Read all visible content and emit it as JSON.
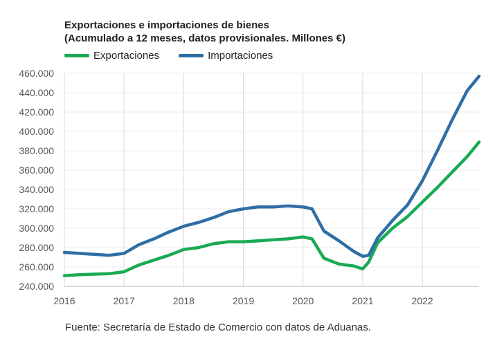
{
  "chart_data": {
    "type": "line",
    "title": "Exportaciones e importaciones de bienes",
    "subtitle": "(Acumulado a 12 meses, datos provisionales. Millones €)",
    "x_ticks": [
      "2016",
      "2017",
      "2018",
      "2019",
      "2020",
      "2021",
      "2022"
    ],
    "y_ticks": [
      "240.000",
      "260.000",
      "280.000",
      "300.000",
      "320.000",
      "340.000",
      "360.000",
      "380.000",
      "400.000",
      "420.000",
      "440.000",
      "460.000"
    ],
    "ylim": [
      240000,
      460000
    ],
    "xlim": [
      2016.0,
      2022.95
    ],
    "legend_position": "top-left",
    "series": [
      {
        "name": "Exportaciones",
        "color": "#1aaa55",
        "x": [
          2016.0,
          2016.25,
          2016.5,
          2016.75,
          2017.0,
          2017.25,
          2017.5,
          2017.75,
          2018.0,
          2018.25,
          2018.5,
          2018.75,
          2019.0,
          2019.25,
          2019.5,
          2019.75,
          2020.0,
          2020.15,
          2020.35,
          2020.6,
          2020.85,
          2021.0,
          2021.1,
          2021.25,
          2021.5,
          2021.75,
          2022.0,
          2022.25,
          2022.5,
          2022.75,
          2022.95
        ],
        "values": [
          251000,
          252000,
          252500,
          253000,
          255000,
          262000,
          267000,
          272000,
          278000,
          280000,
          284000,
          286000,
          286000,
          287000,
          288000,
          289000,
          291000,
          289000,
          269000,
          263000,
          261000,
          258000,
          265000,
          285000,
          300000,
          312000,
          327000,
          342000,
          358000,
          374000,
          389000
        ]
      },
      {
        "name": "Importaciones",
        "color": "#2f6ea5",
        "x": [
          2016.0,
          2016.25,
          2016.5,
          2016.75,
          2017.0,
          2017.25,
          2017.5,
          2017.75,
          2018.0,
          2018.25,
          2018.5,
          2018.75,
          2019.0,
          2019.25,
          2019.5,
          2019.75,
          2020.0,
          2020.15,
          2020.35,
          2020.6,
          2020.85,
          2021.0,
          2021.1,
          2021.25,
          2021.5,
          2021.75,
          2022.0,
          2022.25,
          2022.5,
          2022.75,
          2022.95
        ],
        "values": [
          275000,
          274000,
          273000,
          272000,
          274000,
          283000,
          289000,
          296000,
          302000,
          306000,
          311000,
          317000,
          320000,
          322000,
          322000,
          323000,
          322000,
          320000,
          297000,
          287000,
          276000,
          271000,
          272000,
          290000,
          308000,
          324000,
          349000,
          380000,
          412000,
          442000,
          457000
        ]
      }
    ]
  },
  "source_text": "Fuente: Secretaría de Estado de Comercio con datos de Aduanas."
}
